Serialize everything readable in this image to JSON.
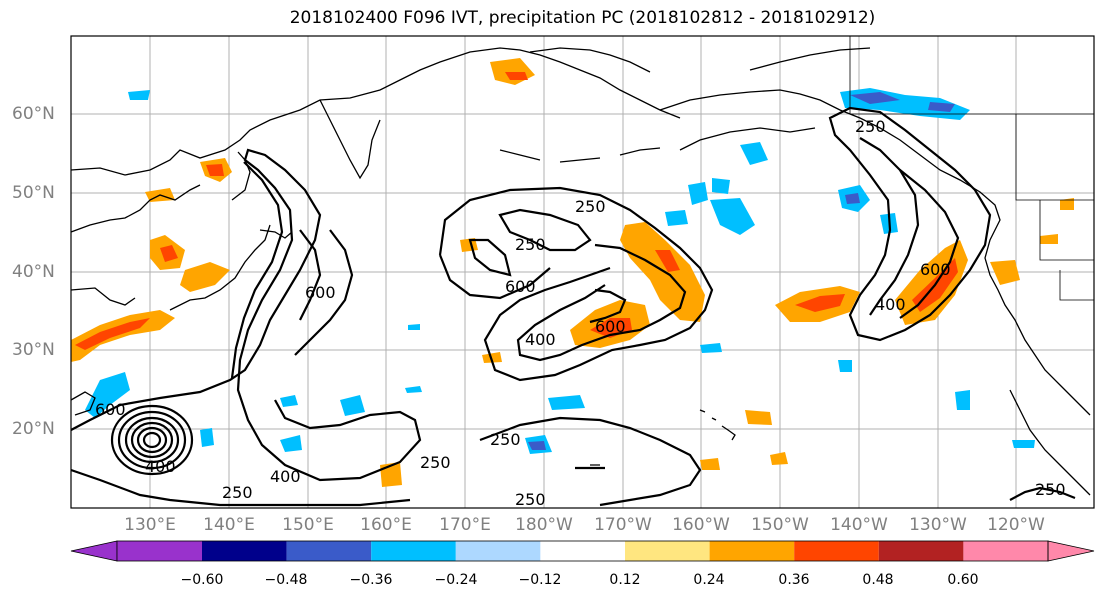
{
  "title": "2018102400 F096 IVT, precipitation PC (2018102812 - 2018102912)",
  "lat_labels": [
    "60°N",
    "50°N",
    "40°N",
    "30°N",
    "20°N"
  ],
  "lon_labels": [
    "130°E",
    "140°E",
    "150°E",
    "160°E",
    "170°E",
    "180°W",
    "170°W",
    "160°W",
    "150°W",
    "140°W",
    "130°W",
    "120°W"
  ],
  "contour_labels": [
    "600",
    "400",
    "250",
    "250",
    "400",
    "600",
    "600",
    "250",
    "250",
    "600",
    "400",
    "250",
    "250",
    "600",
    "400",
    "250",
    "250"
  ],
  "colorbar": {
    "tick_labels": [
      "−0.60",
      "−0.48",
      "−0.36",
      "−0.24",
      "−0.12",
      "0.12",
      "0.24",
      "0.36",
      "0.48",
      "0.60"
    ],
    "colors": [
      "#9932CC",
      "#00008B",
      "#3A5BC9",
      "#00BFFF",
      "#ADD8FF",
      "#FFFFFF",
      "#FFE680",
      "#FFA500",
      "#FF4500",
      "#B22222",
      "#FF88AA"
    ]
  }
}
